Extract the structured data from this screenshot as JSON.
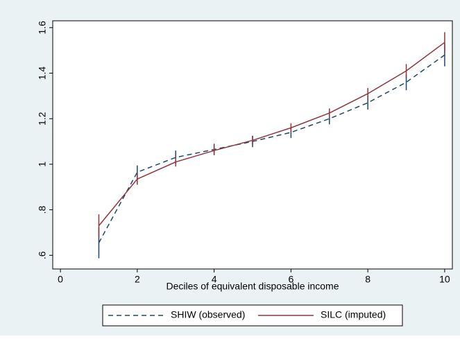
{
  "chart_data": {
    "type": "line",
    "x": [
      1,
      2,
      3,
      4,
      5,
      6,
      7,
      8,
      9,
      10
    ],
    "xlabel": "Deciles of equivalent disposable income",
    "xlim": [
      -0.2,
      10.2
    ],
    "xticks": [
      0,
      2,
      4,
      6,
      8,
      10
    ],
    "ylim": [
      0.54,
      1.63
    ],
    "yticks": [
      {
        "value": 0.6,
        "label": ".6"
      },
      {
        "value": 0.8,
        "label": ".8"
      },
      1,
      1.2,
      1.4,
      1.6
    ],
    "legend": "bottom",
    "series": [
      {
        "name": "SHIW (observed)",
        "color": "#1a476f",
        "dash": true,
        "values": [
          0.655,
          0.965,
          1.03,
          1.065,
          1.1,
          1.14,
          1.2,
          1.27,
          1.36,
          1.48
        ],
        "errors": [
          0.068,
          0.03,
          0.03,
          0.025,
          0.025,
          0.025,
          0.025,
          0.03,
          0.035,
          0.05
        ]
      },
      {
        "name": "SILC (imputed)",
        "color": "#90353b",
        "dash": false,
        "values": [
          0.73,
          0.935,
          1.01,
          1.06,
          1.105,
          1.16,
          1.225,
          1.31,
          1.41,
          1.535
        ],
        "errors": [
          0.05,
          0.025,
          0.02,
          0.02,
          0.02,
          0.02,
          0.02,
          0.025,
          0.03,
          0.045
        ]
      }
    ]
  }
}
